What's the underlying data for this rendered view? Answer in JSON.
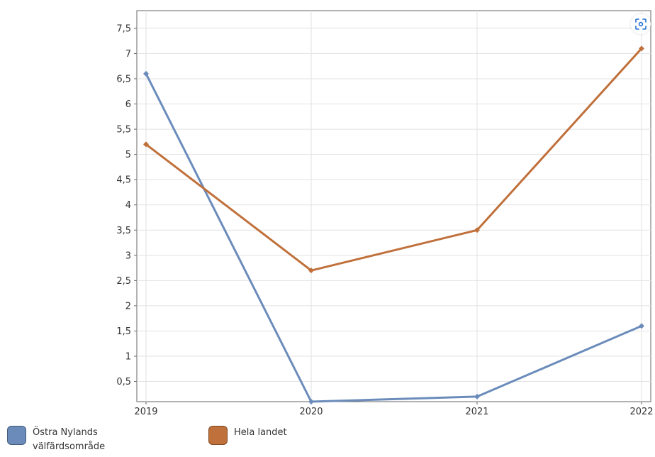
{
  "chart_data": {
    "type": "line",
    "x": [
      "2019",
      "2020",
      "2021",
      "2022"
    ],
    "y_ticks": [
      "0,5",
      "1",
      "1,5",
      "2",
      "2,5",
      "3",
      "3,5",
      "4",
      "4,5",
      "5",
      "5,5",
      "6",
      "6,5",
      "7",
      "7,5"
    ],
    "ylim": [
      0.1,
      7.85
    ],
    "grid": true,
    "legend_position": "bottom",
    "series": [
      {
        "name": "Östra Nylands välfärdsområde",
        "values": [
          6.6,
          0.1,
          0.2,
          1.6
        ],
        "color": "#6b8cbb"
      },
      {
        "name": "Hela landet",
        "values": [
          5.2,
          2.7,
          3.5,
          7.1
        ],
        "color": "#c0703a"
      }
    ]
  },
  "legend": {
    "items": [
      {
        "line1": "Östra Nylands",
        "line2": "välfärdsområde",
        "color": "#6b8cbb"
      },
      {
        "line1": "Hela landet",
        "line2": "",
        "color": "#c0703a"
      }
    ]
  },
  "toolbar": {
    "focus_icon": "focus-screenshot-icon"
  }
}
